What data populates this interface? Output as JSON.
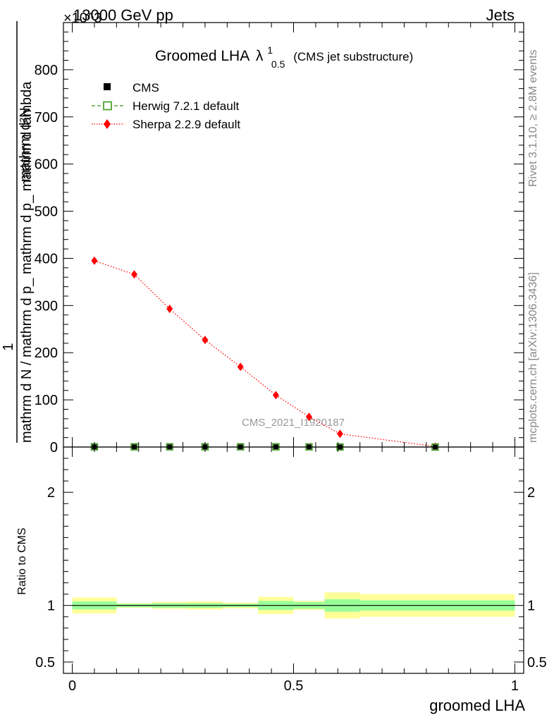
{
  "header": {
    "left": "13000 GeV pp",
    "right": "Jets",
    "exponent_label": "×10^3"
  },
  "side_labels": {
    "rivet": "Rivet 3.1.10, ≥ 2.8M events",
    "mcplots": "mcplots.cern.ch [arXiv:1306.3436]"
  },
  "watermark": "CMS_2021_I1920187",
  "chart_data": [
    {
      "type": "line",
      "panel": "main",
      "title": "Groomed LHA",
      "title_symbol": "λ",
      "title_superscript": "1",
      "title_subscript": "0.5",
      "title_suffix": "(CMS jet substructure)",
      "ylabel_numerator": "1",
      "ylabel_denominator": "mathrm d N / mathrm d p_ mathrm d p_ mathrm d lambda",
      "ylabel_extra": "mathrm d²N",
      "xlim": [
        -0.02,
        1.02
      ],
      "ylim": [
        0,
        900
      ],
      "y_ticks": [
        0,
        100,
        200,
        300,
        400,
        500,
        600,
        700,
        800
      ],
      "y_tick_labels": [
        "0",
        "100",
        "200",
        "300",
        "400",
        "500",
        "600",
        "700",
        "800"
      ],
      "legend_position": "top-left",
      "legend": [
        {
          "name": "CMS",
          "marker": "square-filled",
          "color": "#000000"
        },
        {
          "name": "Herwig 7.2.1 default",
          "marker": "square-open",
          "color": "#3a9a1a",
          "dash": "dashed"
        },
        {
          "name": "Sherpa 2.2.9 default",
          "marker": "diamond",
          "color": "#ff0000",
          "dash": "dotted"
        }
      ],
      "series": [
        {
          "name": "CMS",
          "x": [
            0.05,
            0.14,
            0.22,
            0.3,
            0.38,
            0.46,
            0.535,
            0.605,
            0.82
          ],
          "y": [
            0.4,
            0.4,
            0.4,
            0.4,
            0.4,
            0.4,
            0.3,
            0.03,
            0.0
          ]
        },
        {
          "name": "Herwig 7.2.1 default",
          "x": [
            0.05,
            0.14,
            0.22,
            0.3,
            0.38,
            0.46,
            0.535,
            0.605,
            0.82
          ],
          "y": [
            0.4,
            0.4,
            0.4,
            0.4,
            0.4,
            0.4,
            0.3,
            0.03,
            0.0
          ]
        },
        {
          "name": "Sherpa 2.2.9 default",
          "x": [
            0.05,
            0.14,
            0.22,
            0.3,
            0.38,
            0.46,
            0.535,
            0.605,
            0.82
          ],
          "y": [
            395,
            366,
            293,
            227,
            170,
            110,
            64,
            28,
            1
          ]
        }
      ]
    },
    {
      "type": "area",
      "panel": "ratio",
      "ylabel": "Ratio to CMS",
      "xlabel": "groomed LHA",
      "xlim": [
        -0.02,
        1.02
      ],
      "ylim": [
        0.4,
        2.4
      ],
      "x_ticks": [
        0,
        0.5,
        1
      ],
      "x_tick_labels": [
        "0",
        "0.5",
        "1"
      ],
      "y_ticks": [
        0.5,
        1,
        2
      ],
      "y_tick_labels": [
        "0.5",
        "1",
        "2"
      ],
      "band_colors": {
        "inner": "#99ff99",
        "outer": "#ffff99"
      },
      "bins": [
        {
          "lo": 0.0,
          "hi": 0.1,
          "inner": [
            0.965,
            1.035
          ],
          "outer": [
            0.93,
            1.07
          ]
        },
        {
          "lo": 0.1,
          "hi": 0.18,
          "inner": [
            0.985,
            1.015
          ],
          "outer": [
            0.98,
            1.02
          ]
        },
        {
          "lo": 0.18,
          "hi": 0.26,
          "inner": [
            0.98,
            1.02
          ],
          "outer": [
            0.97,
            1.03
          ]
        },
        {
          "lo": 0.26,
          "hi": 0.34,
          "inner": [
            0.98,
            1.02
          ],
          "outer": [
            0.965,
            1.035
          ]
        },
        {
          "lo": 0.34,
          "hi": 0.42,
          "inner": [
            0.985,
            1.015
          ],
          "outer": [
            0.975,
            1.025
          ]
        },
        {
          "lo": 0.42,
          "hi": 0.5,
          "inner": [
            0.96,
            1.04
          ],
          "outer": [
            0.925,
            1.075
          ]
        },
        {
          "lo": 0.5,
          "hi": 0.57,
          "inner": [
            0.97,
            1.03
          ],
          "outer": [
            0.96,
            1.04
          ]
        },
        {
          "lo": 0.57,
          "hi": 0.65,
          "inner": [
            0.945,
            1.055
          ],
          "outer": [
            0.885,
            1.115
          ]
        },
        {
          "lo": 0.65,
          "hi": 1.0,
          "inner": [
            0.955,
            1.045
          ],
          "outer": [
            0.9,
            1.1
          ]
        }
      ]
    }
  ]
}
